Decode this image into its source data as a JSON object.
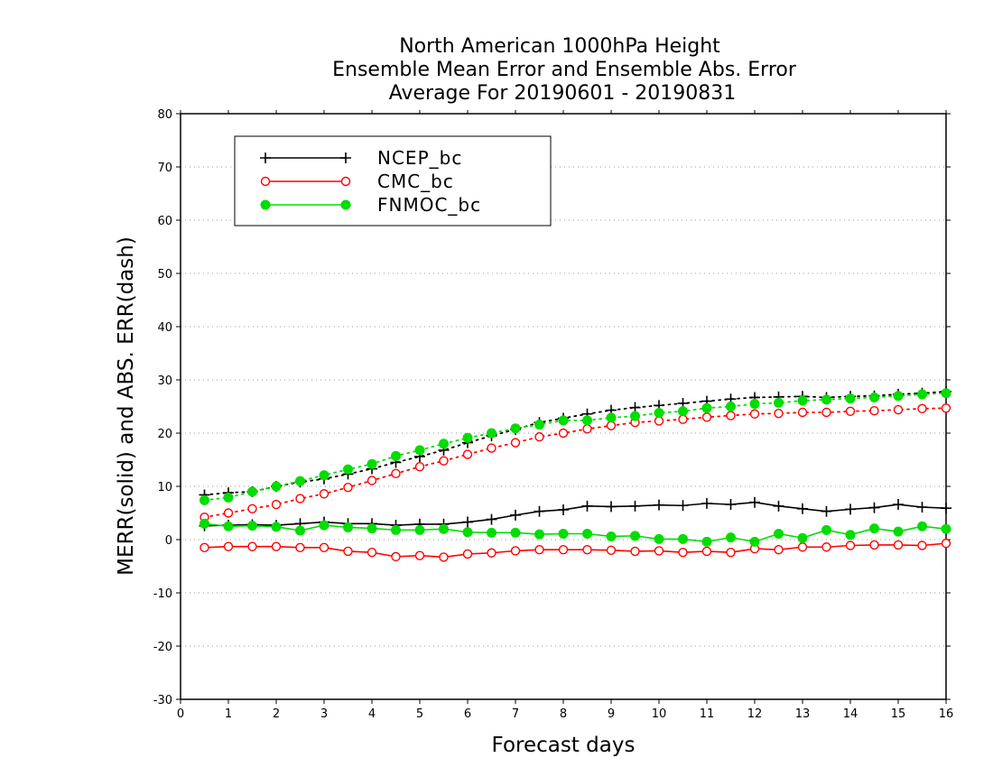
{
  "chart_data": {
    "type": "line",
    "title": [
      "North American 1000hPa Height",
      "Ensemble Mean Error and Ensemble Abs. Error",
      "Average For 20190601 - 20190831"
    ],
    "xlabel": "Forecast days",
    "ylabel": "MERR(solid) and ABS. ERR(dash)",
    "xlim": [
      0,
      16
    ],
    "ylim": [
      -30,
      80
    ],
    "xticks": [
      0,
      1,
      2,
      3,
      4,
      5,
      6,
      7,
      8,
      9,
      10,
      11,
      12,
      13,
      14,
      15,
      16
    ],
    "yticks": [
      -30,
      -20,
      -10,
      0,
      10,
      20,
      30,
      40,
      50,
      60,
      70,
      80
    ],
    "grid": "horizontal-dotted",
    "legend_position": "top-left",
    "x": [
      0.5,
      1,
      1.5,
      2,
      2.5,
      3,
      3.5,
      4,
      4.5,
      5,
      5.5,
      6,
      6.5,
      7,
      7.5,
      8,
      8.5,
      9,
      9.5,
      10,
      10.5,
      11,
      11.5,
      12,
      12.5,
      13,
      13.5,
      14,
      14.5,
      15,
      15.5,
      16
    ],
    "series": [
      {
        "name": "NCEP_bc",
        "color": "#000000",
        "marker": "plus",
        "merr": [
          2.6,
          2.7,
          2.8,
          2.7,
          3.0,
          3.3,
          3.0,
          3.0,
          2.7,
          2.9,
          2.9,
          3.3,
          3.8,
          4.6,
          5.3,
          5.6,
          6.3,
          6.2,
          6.3,
          6.5,
          6.4,
          6.8,
          6.6,
          7.0,
          6.3,
          5.8,
          5.3,
          5.7,
          6.0,
          6.6,
          6.1,
          5.9
        ],
        "abs_err": [
          8.4,
          8.8,
          9.0,
          10.0,
          10.8,
          11.4,
          12.3,
          13.3,
          14.5,
          15.6,
          16.8,
          18.2,
          19.5,
          20.7,
          22.0,
          22.8,
          23.6,
          24.3,
          24.8,
          25.2,
          25.6,
          26.0,
          26.4,
          26.7,
          26.8,
          26.9,
          26.7,
          26.9,
          27.0,
          27.3,
          27.5,
          27.8
        ]
      },
      {
        "name": "CMC_bc",
        "color": "#ff0000",
        "marker": "open-circle",
        "merr": [
          -1.5,
          -1.3,
          -1.3,
          -1.3,
          -1.5,
          -1.5,
          -2.2,
          -2.4,
          -3.2,
          -3.0,
          -3.3,
          -2.7,
          -2.5,
          -2.1,
          -1.9,
          -1.9,
          -1.9,
          -2.0,
          -2.2,
          -2.1,
          -2.4,
          -2.2,
          -2.4,
          -1.7,
          -1.9,
          -1.4,
          -1.4,
          -1.1,
          -1.0,
          -1.0,
          -1.1,
          -0.7
        ],
        "abs_err": [
          4.2,
          5.0,
          5.8,
          6.6,
          7.7,
          8.6,
          9.8,
          11.1,
          12.4,
          13.7,
          14.8,
          16.0,
          17.2,
          18.2,
          19.3,
          20.0,
          20.8,
          21.4,
          22.0,
          22.3,
          22.6,
          23.0,
          23.3,
          23.6,
          23.7,
          23.9,
          23.9,
          24.1,
          24.2,
          24.4,
          24.6,
          24.7
        ]
      },
      {
        "name": "FNMOC_bc",
        "color": "#00dd00",
        "marker": "filled-circle",
        "merr": [
          3.0,
          2.5,
          2.6,
          2.4,
          1.7,
          2.7,
          2.3,
          2.1,
          1.8,
          1.8,
          2.0,
          1.4,
          1.3,
          1.3,
          1.0,
          1.1,
          1.1,
          0.6,
          0.7,
          0.1,
          0.1,
          -0.4,
          0.4,
          -0.4,
          1.1,
          0.3,
          1.8,
          0.9,
          2.1,
          1.5,
          2.5,
          2.0
        ],
        "abs_err": [
          7.4,
          7.9,
          9.0,
          10.0,
          11.0,
          12.1,
          13.2,
          14.2,
          15.7,
          16.8,
          18.0,
          19.1,
          20.0,
          20.9,
          21.6,
          22.4,
          22.4,
          22.9,
          23.2,
          23.8,
          24.1,
          24.7,
          25.0,
          25.5,
          25.7,
          26.1,
          26.3,
          26.5,
          26.7,
          27.0,
          27.3,
          27.5
        ]
      }
    ]
  }
}
